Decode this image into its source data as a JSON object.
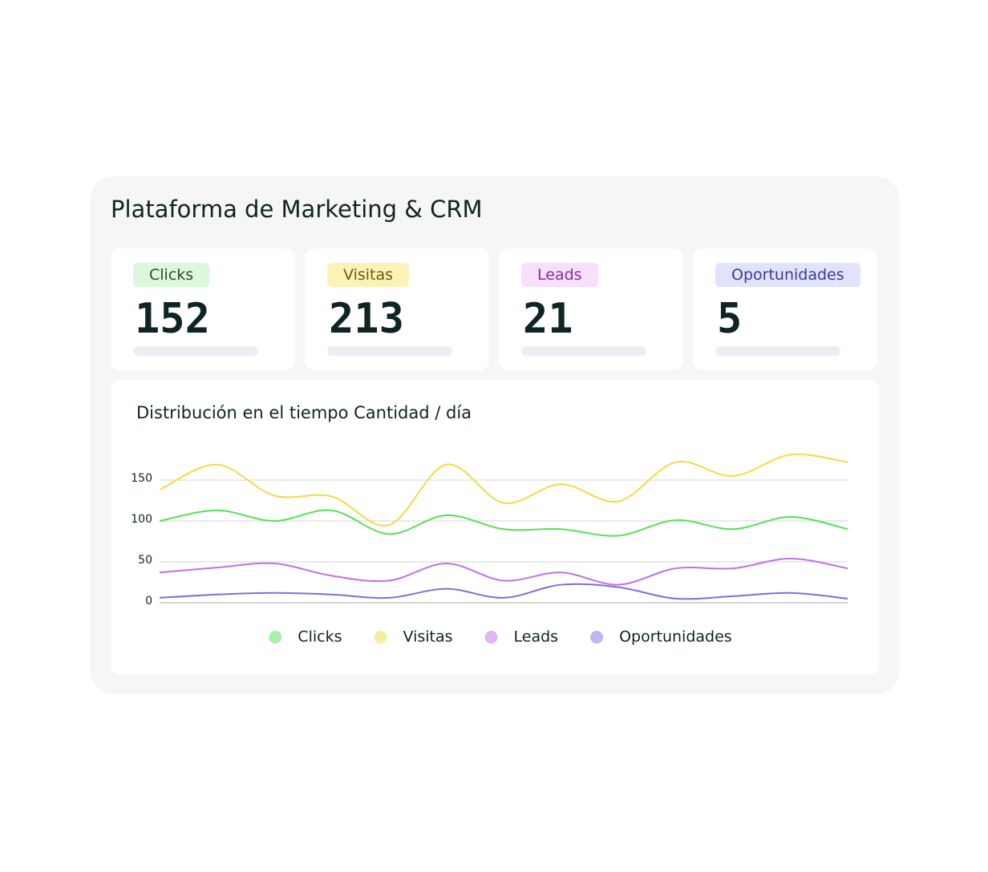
{
  "header": {
    "title": "Plataforma de Marketing & CRM"
  },
  "kpis": [
    {
      "label": "Clicks",
      "value": "152"
    },
    {
      "label": "Visitas",
      "value": "213"
    },
    {
      "label": "Leads",
      "value": "21"
    },
    {
      "label": "Oportunidades",
      "value": "5"
    }
  ],
  "chart_data": {
    "type": "line",
    "title": "Distribución en el tiempo Cantidad / día",
    "categories": [
      null,
      null,
      null,
      null,
      null,
      null,
      null,
      null,
      null,
      null,
      null,
      null,
      null
    ],
    "series": [
      {
        "name": "Clicks",
        "color": "#55e05a",
        "values": [
          100,
          113,
          100,
          113,
          84,
          107,
          90,
          90,
          82,
          101,
          90,
          105,
          90
        ]
      },
      {
        "name": "Visitas",
        "color": "#f2dc40",
        "values": [
          138,
          169,
          131,
          130,
          95,
          169,
          122,
          145,
          124,
          172,
          155,
          181,
          172
        ]
      },
      {
        "name": "Leads",
        "color": "#c46ee6",
        "values": [
          37,
          43,
          48,
          33,
          27,
          48,
          27,
          37,
          22,
          42,
          42,
          54,
          42
        ]
      },
      {
        "name": "Oportunidades",
        "color": "#7b6fe0",
        "values": [
          6,
          10,
          12,
          10,
          6,
          17,
          6,
          22,
          19,
          5,
          8,
          12,
          5
        ]
      }
    ],
    "ylim": [
      0,
      200
    ],
    "yticks": [
      0,
      50,
      100,
      150
    ],
    "grid": true,
    "legend": "bottom"
  }
}
